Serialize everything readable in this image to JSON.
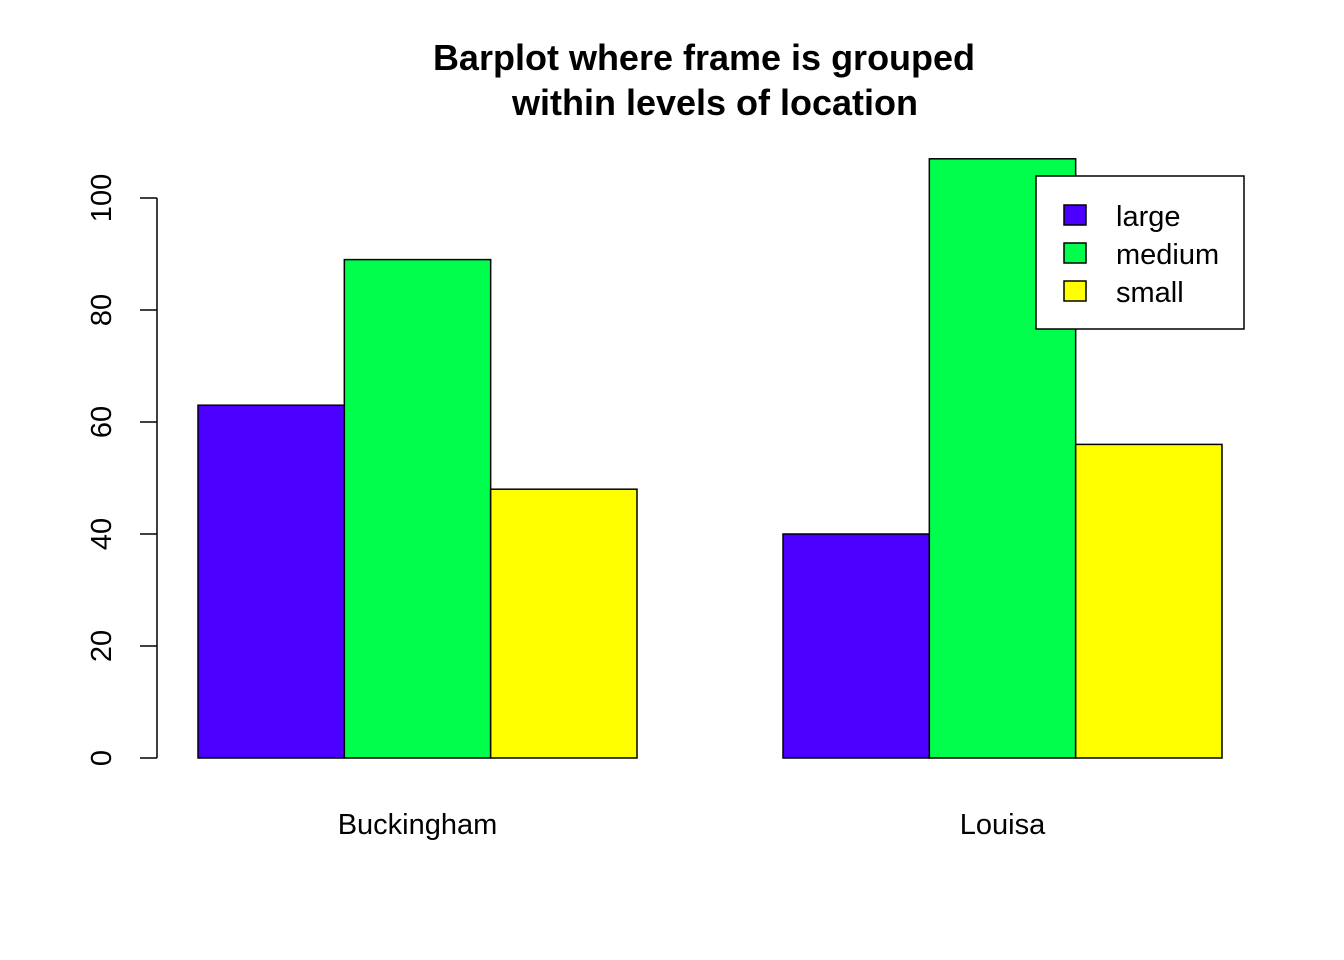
{
  "chart_data": {
    "type": "bar",
    "title_lines": [
      "Barplot where frame is grouped",
      "within levels of location"
    ],
    "xlabel": "",
    "ylabel": "",
    "categories": [
      "Buckingham",
      "Louisa"
    ],
    "series": [
      {
        "name": "large",
        "color": "#4B00FF",
        "values": [
          63,
          40
        ]
      },
      {
        "name": "medium",
        "color": "#00FF4C",
        "values": [
          89,
          107
        ]
      },
      {
        "name": "small",
        "color": "#FFFF00",
        "values": [
          48,
          56
        ]
      }
    ],
    "ylim": [
      0,
      107
    ],
    "yticks": [
      "0",
      "20",
      "40",
      "60",
      "80",
      "100"
    ],
    "grid": false,
    "legend": {
      "position": "top-right",
      "entries": [
        "large",
        "medium",
        "small"
      ]
    }
  }
}
